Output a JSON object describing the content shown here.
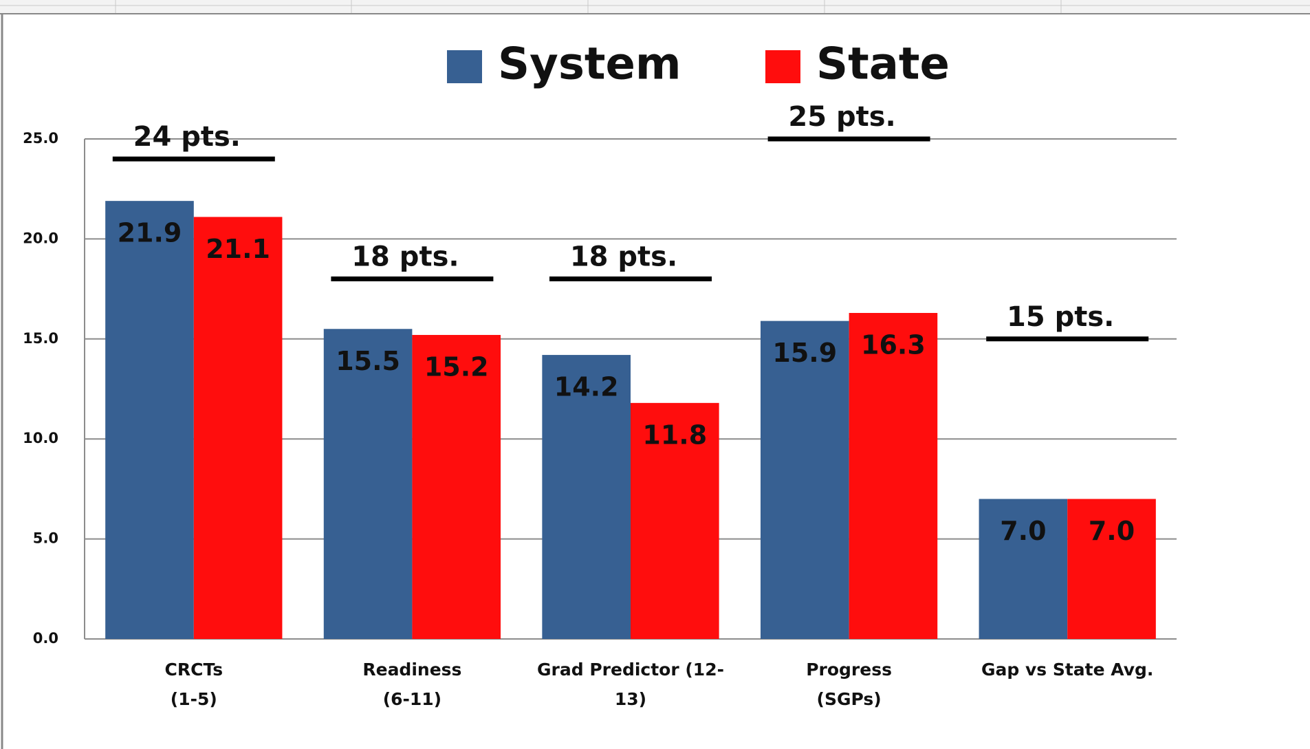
{
  "chart_data": {
    "type": "bar",
    "categories": [
      [
        "CRCTs",
        "(1-5)"
      ],
      [
        "Readiness",
        "(6-11)"
      ],
      [
        "Grad Predictor (12-",
        "13)"
      ],
      [
        "Progress",
        "(SGPs)"
      ],
      [
        "Gap vs State Avg."
      ]
    ],
    "series": [
      {
        "name": "System",
        "color": "#376092",
        "values": [
          21.9,
          15.5,
          14.2,
          15.9,
          7.0
        ],
        "value_labels": [
          "21.9",
          "15.5",
          "14.2",
          "15.9",
          "7.0"
        ]
      },
      {
        "name": "State",
        "color": "#ff0d0d",
        "values": [
          21.1,
          15.2,
          11.8,
          16.3,
          7.0
        ],
        "value_labels": [
          "21.1",
          "15.2",
          "11.8",
          "16.3",
          "7.0"
        ]
      }
    ],
    "ylim": [
      0,
      25
    ],
    "yticks": [
      {
        "value": 0,
        "label": "0.0"
      },
      {
        "value": 5,
        "label": "5.0"
      },
      {
        "value": 10,
        "label": "10.0"
      },
      {
        "value": 15,
        "label": "15.0"
      },
      {
        "value": 20,
        "label": "20.0"
      },
      {
        "value": 25,
        "label": "25.0"
      }
    ],
    "grid": true,
    "legend": "top",
    "annotations": [
      {
        "text": "24 pts.",
        "value": 24
      },
      {
        "text": "18 pts.",
        "value": 18
      },
      {
        "text": "18 pts.",
        "value": 18
      },
      {
        "text": "25 pts.",
        "value": 25
      },
      {
        "text": "15 pts.",
        "value": 15
      }
    ]
  }
}
